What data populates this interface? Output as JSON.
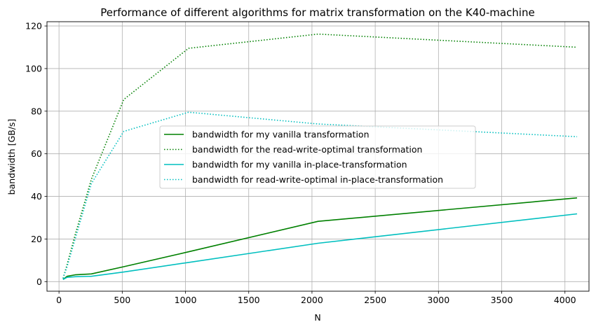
{
  "chart_data": {
    "type": "line",
    "title": "Performance of different algorithms for matrix transformation on the K40-machine",
    "xlabel": "N",
    "ylabel": "bandwidth [GB/s]",
    "xlim": [
      -95,
      4190
    ],
    "ylim": [
      -4.5,
      122
    ],
    "xticks": [
      0,
      500,
      1000,
      1500,
      2000,
      2500,
      3000,
      3500,
      4000
    ],
    "yticks": [
      0,
      20,
      40,
      60,
      80,
      100,
      120
    ],
    "grid": true,
    "legend_position": "center",
    "series": [
      {
        "name": "bandwidth for my vanilla transformation",
        "color": "#008000",
        "style": "solid",
        "x": [
          32,
          64,
          128,
          256,
          512,
          1024,
          2048,
          4096
        ],
        "y": [
          1.0,
          2.5,
          3.2,
          3.6,
          7.0,
          14.0,
          28.3,
          39.3
        ]
      },
      {
        "name": "bandwidth for the read-write-optimal transformation",
        "color": "#008000",
        "style": "dotted",
        "x": [
          32,
          64,
          128,
          256,
          512,
          1024,
          2048,
          4096
        ],
        "y": [
          1.5,
          8.0,
          22.0,
          48.0,
          85.5,
          109.5,
          116.2,
          110.0
        ]
      },
      {
        "name": "bandwidth for my vanilla in-place-transformation",
        "color": "#00bfbf",
        "style": "solid",
        "x": [
          32,
          64,
          128,
          256,
          512,
          1024,
          2048,
          4096
        ],
        "y": [
          1.0,
          2.0,
          2.3,
          2.5,
          4.5,
          9.0,
          18.0,
          31.8
        ]
      },
      {
        "name": "bandwidth for read-write-optimal in-place-transformation",
        "color": "#00bfbf",
        "style": "dotted",
        "x": [
          32,
          64,
          128,
          256,
          512,
          1024,
          2048,
          4096
        ],
        "y": [
          1.5,
          7.0,
          20.0,
          46.0,
          70.5,
          79.5,
          74.0,
          68.0
        ]
      }
    ]
  }
}
